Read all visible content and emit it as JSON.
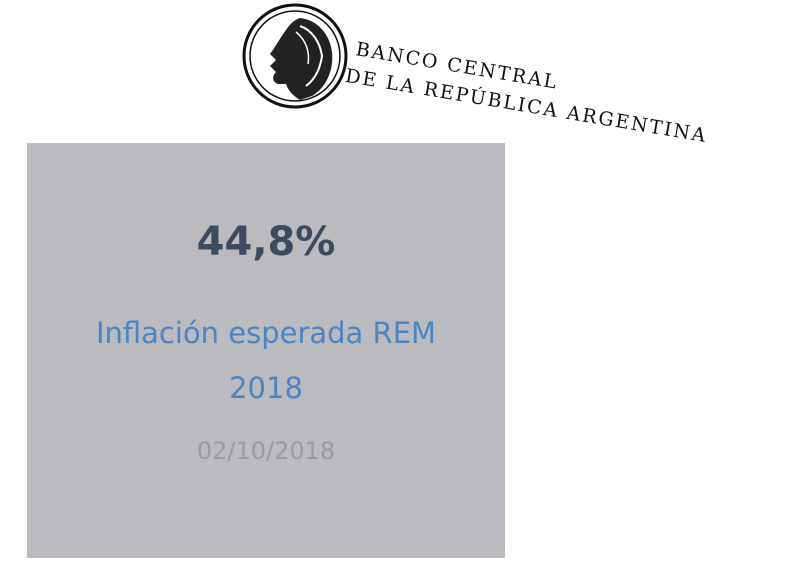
{
  "logo": {
    "line1": "BANCO CENTRAL",
    "line2": "DE LA REPÚBLICA ARGENTINA"
  },
  "card": {
    "value": "44,8%",
    "label": "Inflación esperada REM 2018",
    "date": "02/10/2018"
  }
}
